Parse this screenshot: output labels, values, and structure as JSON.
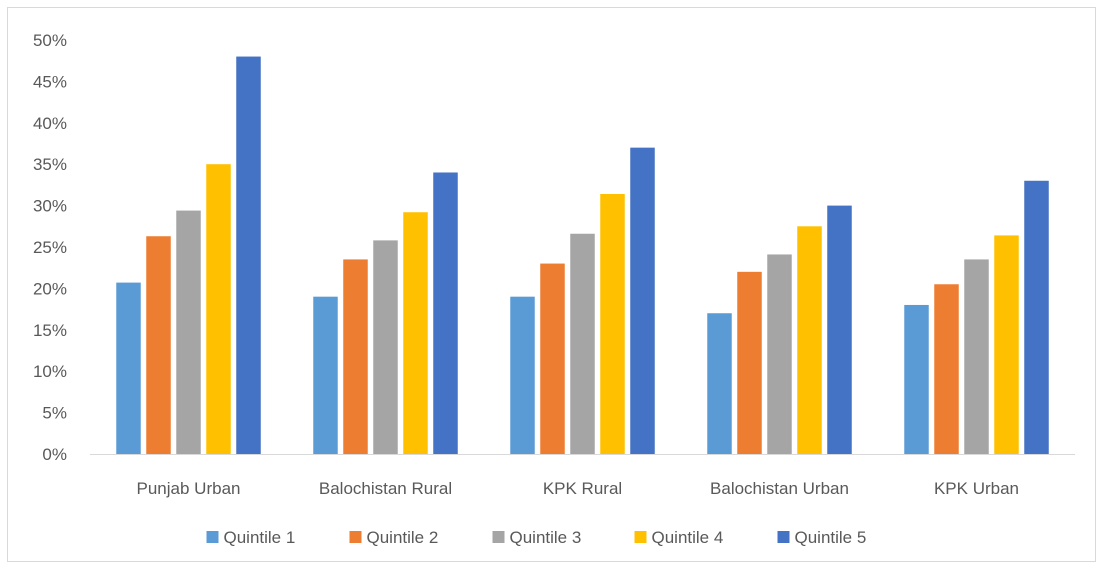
{
  "chart_data": {
    "type": "bar",
    "title": "",
    "xlabel": "",
    "ylabel": "",
    "ylim": [
      0,
      50
    ],
    "y_ticks": [
      "0%",
      "5%",
      "10%",
      "15%",
      "20%",
      "25%",
      "30%",
      "35%",
      "40%",
      "45%",
      "50%"
    ],
    "grid": false,
    "legend_position": "bottom",
    "categories": [
      "Punjab Urban",
      "Balochistan Rural",
      "KPK Rural",
      "Balochistan Urban",
      "KPK Urban"
    ],
    "series": [
      {
        "name": "Quintile 1",
        "color": "#5b9bd5",
        "values": [
          20.7,
          19.0,
          19.0,
          17.0,
          18.0
        ]
      },
      {
        "name": "Quintile 2",
        "color": "#ed7d31",
        "values": [
          26.3,
          23.5,
          23.0,
          22.0,
          20.5
        ]
      },
      {
        "name": "Quintile 3",
        "color": "#a5a5a5",
        "values": [
          29.4,
          25.8,
          26.6,
          24.1,
          23.5
        ]
      },
      {
        "name": "Quintile 4",
        "color": "#ffc000",
        "values": [
          35.0,
          29.2,
          31.4,
          27.5,
          26.4
        ]
      },
      {
        "name": "Quintile 5",
        "color": "#4472c4",
        "values": [
          48.0,
          34.0,
          37.0,
          30.0,
          33.0
        ]
      }
    ]
  }
}
